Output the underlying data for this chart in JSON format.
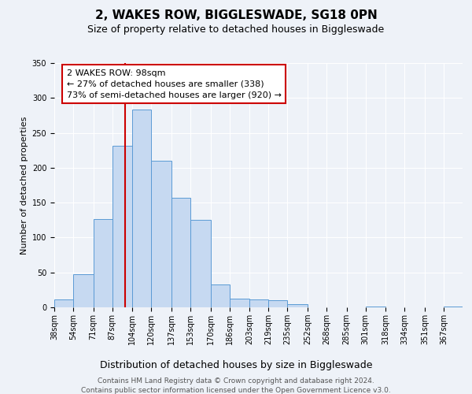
{
  "title": "2, WAKES ROW, BIGGLESWADE, SG18 0PN",
  "subtitle": "Size of property relative to detached houses in Biggleswade",
  "xlabel": "Distribution of detached houses by size in Biggleswade",
  "ylabel": "Number of detached properties",
  "bin_labels": [
    "38sqm",
    "54sqm",
    "71sqm",
    "87sqm",
    "104sqm",
    "120sqm",
    "137sqm",
    "153sqm",
    "170sqm",
    "186sqm",
    "203sqm",
    "219sqm",
    "235sqm",
    "252sqm",
    "268sqm",
    "285sqm",
    "301sqm",
    "318sqm",
    "334sqm",
    "351sqm",
    "367sqm"
  ],
  "bar_values": [
    11,
    47,
    127,
    231,
    283,
    210,
    157,
    125,
    33,
    12,
    11,
    10,
    5,
    0,
    0,
    0,
    1,
    0,
    0,
    0,
    1
  ],
  "bar_color": "#c6d9f1",
  "bar_edge_color": "#5b9bd5",
  "vline_x": 98,
  "bin_edges": [
    38,
    54,
    71,
    87,
    104,
    120,
    137,
    153,
    170,
    186,
    203,
    219,
    235,
    252,
    268,
    285,
    301,
    318,
    334,
    351,
    367,
    383
  ],
  "ylim": [
    0,
    350
  ],
  "yticks": [
    0,
    50,
    100,
    150,
    200,
    250,
    300,
    350
  ],
  "annotation_title": "2 WAKES ROW: 98sqm",
  "annotation_line1": "← 27% of detached houses are smaller (338)",
  "annotation_line2": "73% of semi-detached houses are larger (920) →",
  "annotation_box_color": "#ffffff",
  "annotation_box_edge_color": "#cc0000",
  "vline_color": "#cc0000",
  "footnote1": "Contains HM Land Registry data © Crown copyright and database right 2024.",
  "footnote2": "Contains public sector information licensed under the Open Government Licence v3.0.",
  "background_color": "#eef2f8",
  "plot_background": "#eef2f8",
  "grid_color": "#ffffff",
  "title_fontsize": 11,
  "subtitle_fontsize": 9,
  "xlabel_fontsize": 9,
  "ylabel_fontsize": 8,
  "tick_fontsize": 7,
  "annotation_fontsize": 8,
  "footnote_fontsize": 6.5
}
